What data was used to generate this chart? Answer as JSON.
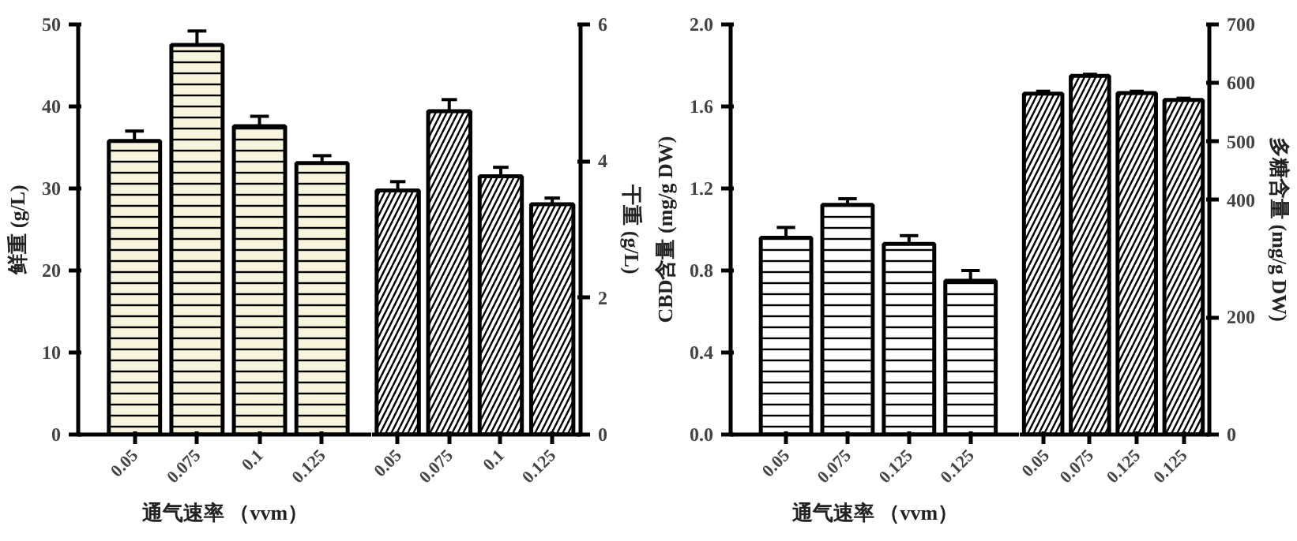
{
  "chart_data": [
    {
      "type": "bar",
      "xlabel": "通气速率 （vvm）",
      "ylabel": "鲜重 (g/L)",
      "categories": [
        "0.05",
        "0.075",
        "0.1",
        "0.125"
      ],
      "ylim": [
        0,
        50
      ],
      "yticks": [
        0,
        10,
        20,
        30,
        40,
        50
      ],
      "grid": false,
      "series": [
        {
          "color": "#f6f4dc",
          "values": [
            35.8,
            47.5,
            37.6,
            33.1
          ],
          "errors": [
            [
              35.8,
              37.0
            ],
            [
              47.5,
              49.2
            ],
            [
              37.6,
              38.8
            ],
            [
              33.1,
              34.0
            ]
          ]
        }
      ]
    },
    {
      "type": "bar",
      "ylabel": "干重 (g/L)",
      "categories": [
        "0.05",
        "0.075",
        "0.1",
        "0.125"
      ],
      "ylim": [
        0,
        6
      ],
      "yticks": [
        0,
        2,
        4,
        6
      ],
      "grid": false,
      "series": [
        {
          "color": "#ffffff",
          "values": [
            3.57,
            4.73,
            3.78,
            3.37
          ],
          "errors": [
            [
              3.57,
              3.7
            ],
            [
              4.73,
              4.9
            ],
            [
              3.78,
              3.91
            ],
            [
              3.37,
              3.46
            ]
          ]
        }
      ]
    },
    {
      "type": "bar",
      "xlabel": "通气速率 （vvm）",
      "ylabel": "CBD含量 (mg/g DW)",
      "categories": [
        "0.05",
        "0.075",
        "0.125",
        "0.125"
      ],
      "ylim": [
        0,
        2.0
      ],
      "yticks": [
        {
          "value": 0,
          "label": "0.0"
        },
        0.4,
        0.8,
        1.2,
        1.6,
        {
          "value": 2,
          "label": "2.0"
        }
      ],
      "grid": false,
      "series": [
        {
          "color": "#ffffff",
          "values": [
            0.96,
            1.12,
            0.93,
            0.75
          ],
          "errors": [
            [
              0.96,
              1.01
            ],
            [
              1.12,
              1.15
            ],
            [
              0.93,
              0.97
            ],
            [
              0.75,
              0.8
            ]
          ]
        }
      ]
    },
    {
      "type": "bar",
      "ylabel": "多糖含量 (mg/g DW)",
      "categories": [
        "0.05",
        "0.075",
        "0.125",
        "0.125"
      ],
      "ylim": [
        0,
        700
      ],
      "yticks": [
        0,
        200,
        400,
        500,
        600,
        700
      ],
      "grid": false,
      "series": [
        {
          "color": "#ffffff",
          "values": [
            582,
            612,
            583,
            571
          ],
          "errors": [
            [
              582,
              586
            ],
            [
              612,
              615
            ],
            [
              583,
              586
            ],
            [
              571,
              574
            ]
          ]
        }
      ]
    }
  ]
}
